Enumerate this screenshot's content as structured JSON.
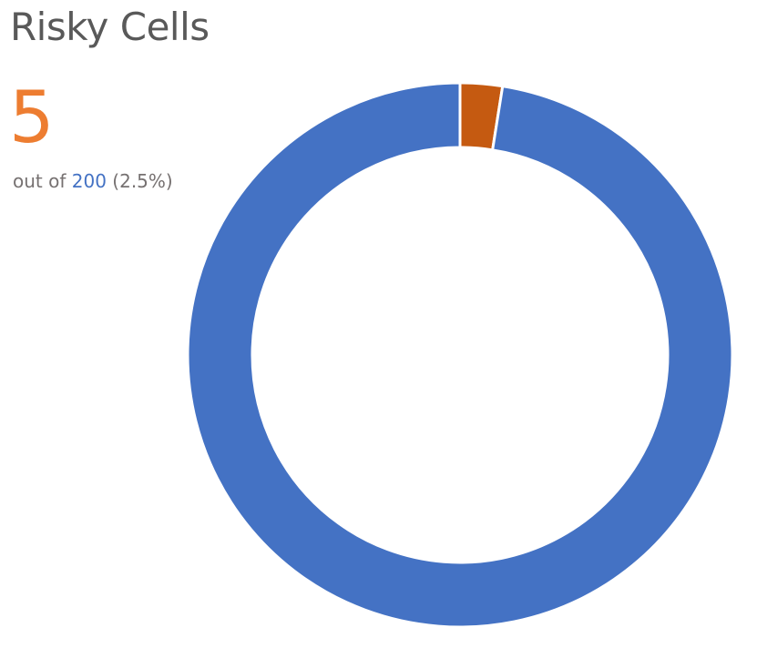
{
  "header": {
    "title": "Risky Cells"
  },
  "summary": {
    "count": "5",
    "prefix": "out of",
    "total": "200",
    "percent": "(2.5%)"
  },
  "colors": {
    "risky": "#c55a11",
    "safe": "#4472c4",
    "count_text": "#ed7d31",
    "total_text": "#4472c4",
    "gap": "#ffffff"
  },
  "chart_data": {
    "type": "pie",
    "variant": "donut",
    "title": "Risky Cells",
    "categories": [
      "",
      ""
    ],
    "values": [
      5,
      195
    ],
    "colors": [
      "#c55a11",
      "#4472c4"
    ],
    "legend": "none",
    "start_angle": "12 o'clock, clockwise"
  }
}
